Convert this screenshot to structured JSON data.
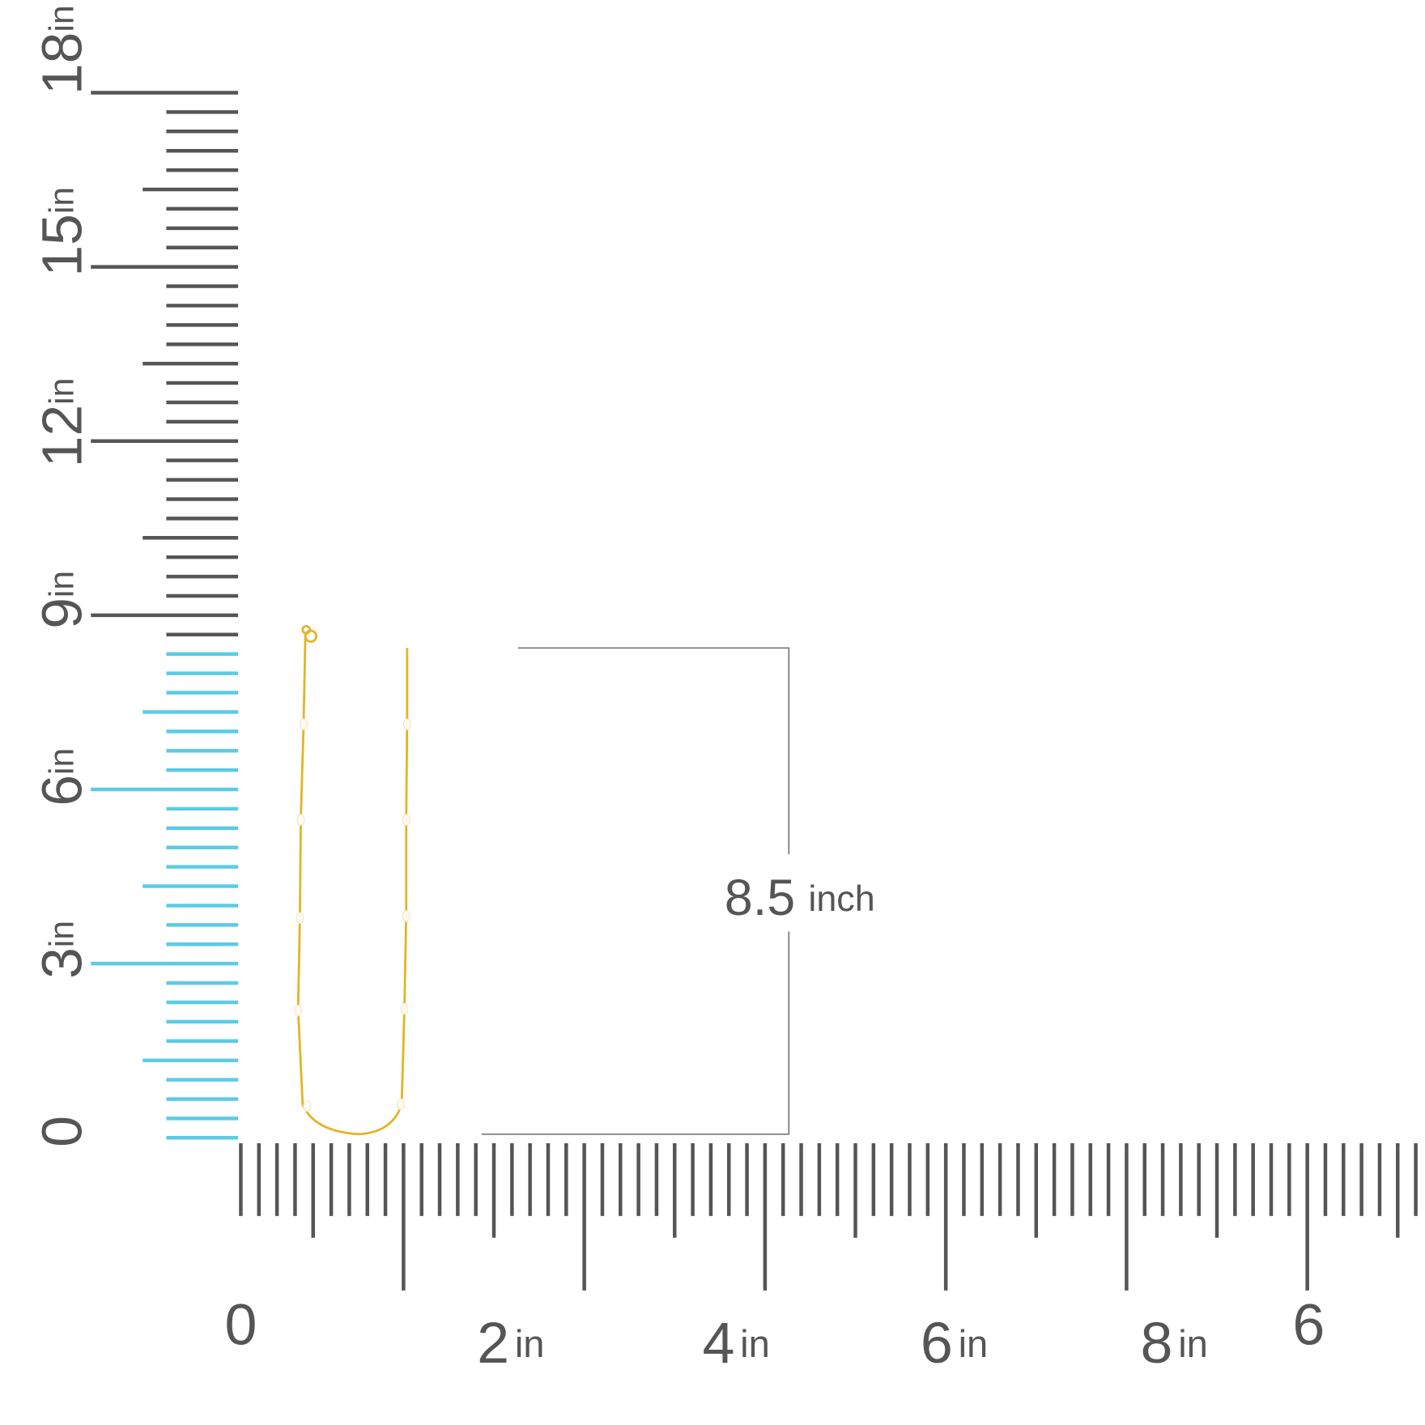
{
  "vertical_ruler": {
    "labels": [
      {
        "number": "18",
        "unit": "in"
      },
      {
        "number": "15",
        "unit": "in"
      },
      {
        "number": "12",
        "unit": "in"
      },
      {
        "number": "9",
        "unit": "in"
      },
      {
        "number": "6",
        "unit": "in"
      },
      {
        "number": "3",
        "unit": "in"
      },
      {
        "number": "0"
      }
    ]
  },
  "horizontal_ruler": {
    "labels": [
      {
        "number": "0"
      },
      {
        "number": "2",
        "unit": "in"
      },
      {
        "number": "4",
        "unit": "in"
      },
      {
        "number": "6",
        "unit": "in"
      },
      {
        "number": "8",
        "unit": "in"
      },
      {
        "number": "6"
      }
    ]
  },
  "measurement": {
    "number": "8.5",
    "unit": "inch"
  }
}
